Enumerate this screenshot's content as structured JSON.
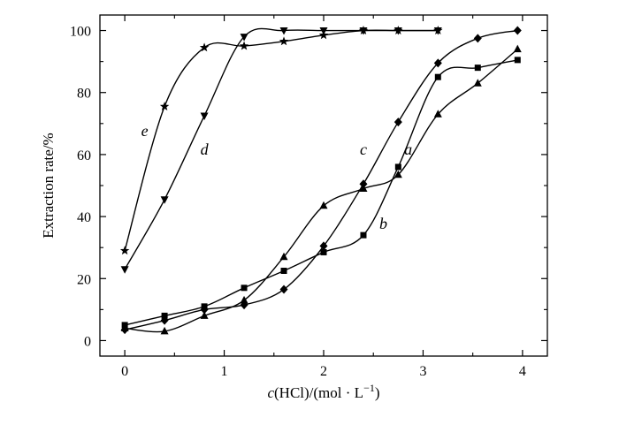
{
  "chart_data": {
    "type": "scatter",
    "title": "",
    "xlabel": "c(HCl)/(mol · L⁻¹)",
    "xlabel_parts": {
      "var": "c",
      "rest": "(HCl)/(mol · L",
      "sup": "−1",
      "close": ")"
    },
    "ylabel": "Extraction rate/%",
    "xlim": [
      -0.25,
      4.25
    ],
    "ylim": [
      -5,
      105
    ],
    "x_ticks": [
      0,
      1,
      2,
      3,
      4
    ],
    "y_ticks": [
      0,
      20,
      40,
      60,
      80,
      100
    ],
    "grid": false,
    "legend": "none",
    "series": [
      {
        "label": "a",
        "marker": "triangle-up",
        "color": "#000000",
        "x": [
          0,
          0.4,
          0.8,
          1.2,
          1.6,
          2.0,
          2.4,
          2.75,
          3.15,
          3.55,
          3.95
        ],
        "y": [
          4,
          3,
          8,
          13,
          27,
          43.5,
          49,
          53.5,
          73,
          83,
          94
        ]
      },
      {
        "label": "b",
        "marker": "square",
        "color": "#000000",
        "x": [
          0,
          0.4,
          0.8,
          1.2,
          1.6,
          2.0,
          2.4,
          2.75,
          3.15,
          3.55,
          3.95
        ],
        "y": [
          5,
          8,
          11,
          17,
          22.5,
          28.5,
          34,
          56,
          85,
          88,
          90.5
        ]
      },
      {
        "label": "c",
        "marker": "diamond",
        "color": "#000000",
        "x": [
          0,
          0.4,
          0.8,
          1.2,
          1.6,
          2.0,
          2.4,
          2.75,
          3.15,
          3.55,
          3.95
        ],
        "y": [
          3.5,
          6.5,
          10,
          11.5,
          16.5,
          30.5,
          50.5,
          70.5,
          89.5,
          97.5,
          100
        ]
      },
      {
        "label": "d",
        "marker": "triangle-down",
        "color": "#000000",
        "x": [
          0,
          0.4,
          0.8,
          1.2,
          1.6,
          2.0,
          2.4,
          2.75,
          3.15
        ],
        "y": [
          23,
          45.5,
          72.5,
          98,
          100,
          100,
          100,
          100,
          100
        ]
      },
      {
        "label": "e",
        "marker": "star",
        "color": "#000000",
        "x": [
          0,
          0.4,
          0.8,
          1.2,
          1.6,
          2.0,
          2.4,
          2.75,
          3.15
        ],
        "y": [
          29,
          75.5,
          94.5,
          95,
          96.5,
          98.5,
          100,
          100,
          100
        ]
      }
    ],
    "curve_labels": [
      {
        "text": "a",
        "x": 2.85,
        "y": 60
      },
      {
        "text": "b",
        "x": 2.6,
        "y": 36
      },
      {
        "text": "c",
        "x": 2.4,
        "y": 60
      },
      {
        "text": "d",
        "x": 0.8,
        "y": 60
      },
      {
        "text": "e",
        "x": 0.2,
        "y": 66
      }
    ]
  }
}
